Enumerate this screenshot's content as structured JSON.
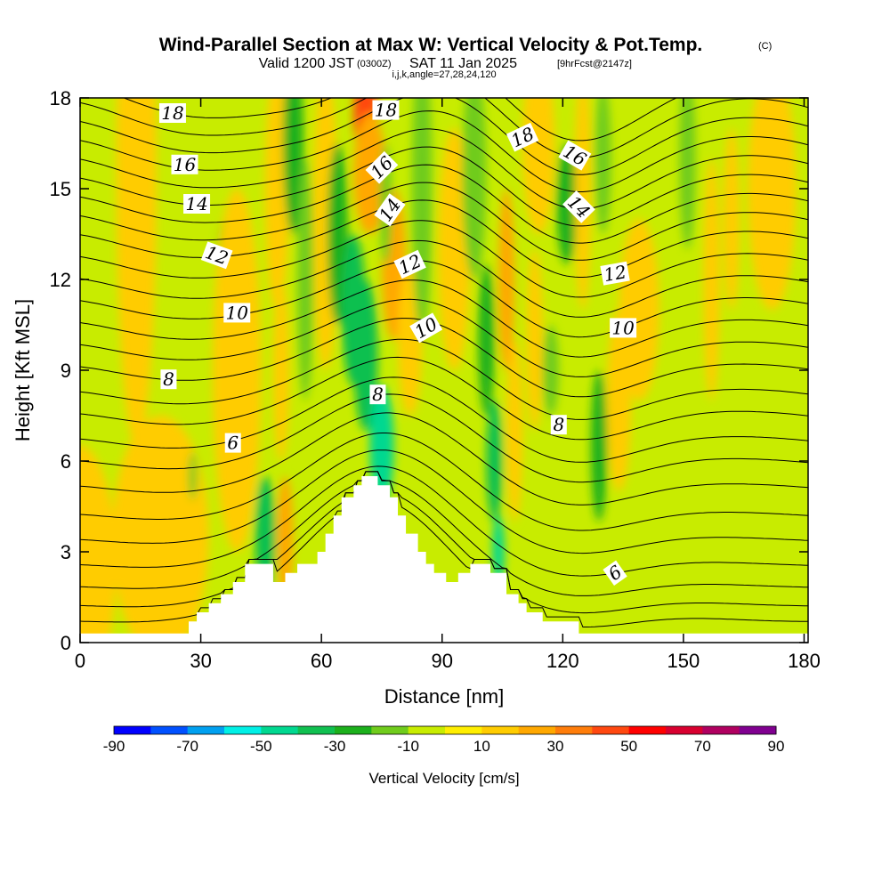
{
  "titles": {
    "main": "Wind-Parallel Section at Max W: Vertical Velocity & Pot.Temp.",
    "copyright": "(C)",
    "valid": "Valid 1200 JST",
    "valid_utc": "(0300Z)",
    "valid_date": "SAT 11 Jan 2025",
    "fcst": "[9hrFcst@2147z]",
    "indices": "i,j,k,angle=27,28,24,120"
  },
  "chart_data": {
    "type": "heatmap",
    "xlabel": "Distance [nm]",
    "ylabel": "Height [Kft MSL]",
    "xlim": [
      0,
      181
    ],
    "ylim": [
      0,
      18
    ],
    "x_ticks": [
      "0",
      "30",
      "60",
      "90",
      "120",
      "150",
      "180"
    ],
    "x_tick_values": [
      0,
      30,
      60,
      90,
      120,
      150,
      180
    ],
    "y_ticks": [
      "0",
      "3",
      "6",
      "9",
      "12",
      "15",
      "18"
    ],
    "y_tick_values": [
      0,
      3,
      6,
      9,
      12,
      15,
      18
    ],
    "background_value": -5,
    "colorbar": {
      "title": "Vertical Velocity [cm/s]",
      "labels": [
        "-90",
        "-70",
        "-50",
        "-30",
        "-10",
        "10",
        "30",
        "50",
        "70",
        "90"
      ],
      "bounds": [
        -90,
        -80,
        -70,
        -60,
        -50,
        -40,
        -30,
        -20,
        -10,
        0,
        10,
        20,
        30,
        40,
        50,
        60,
        70,
        80,
        90
      ],
      "colors": [
        "#0000ff",
        "#0050ff",
        "#00a0f0",
        "#00f0e6",
        "#00d890",
        "#10c050",
        "#1cb01c",
        "#70cc1c",
        "#c8ec00",
        "#ffee00",
        "#ffcc00",
        "#ffa800",
        "#ff7d0a",
        "#ff4810",
        "#ff0000",
        "#d80030",
        "#b00060",
        "#800090"
      ]
    },
    "w_features": [
      {
        "x": 14,
        "y": 15.5,
        "sx": 5,
        "sy": 9,
        "value": 12
      },
      {
        "x": 0,
        "y": 2.5,
        "sx": 9,
        "sy": 4,
        "value": 12
      },
      {
        "x": 20,
        "y": 3.5,
        "sx": 12,
        "sy": 4,
        "value": 12
      },
      {
        "x": 36,
        "y": 12.5,
        "sx": 2,
        "sy": 1.5,
        "value": -18
      },
      {
        "x": 28,
        "y": 5.5,
        "sx": 1,
        "sy": 0.8,
        "value": -18
      },
      {
        "x": 39,
        "y": 9,
        "sx": 6,
        "sy": 6,
        "value": 12
      },
      {
        "x": 46,
        "y": 3.5,
        "sx": 2.5,
        "sy": 2,
        "value": -32
      },
      {
        "x": 49,
        "y": 15,
        "sx": 3,
        "sy": 4,
        "value": 12
      },
      {
        "x": 50,
        "y": 9,
        "sx": 2,
        "sy": 3,
        "value": 18
      },
      {
        "x": 51,
        "y": 3.5,
        "sx": 2,
        "sy": 2,
        "value": 22
      },
      {
        "x": 53,
        "y": 16.5,
        "sx": 2.5,
        "sy": 3,
        "value": -25
      },
      {
        "x": 56,
        "y": 12,
        "sx": 2,
        "sy": 4,
        "value": -18
      },
      {
        "x": 61,
        "y": 14,
        "sx": 3,
        "sy": 5,
        "value": 12
      },
      {
        "x": 64,
        "y": 13.5,
        "sx": 2.5,
        "sy": 3,
        "value": -22
      },
      {
        "x": 68,
        "y": 11,
        "sx": 3,
        "sy": 2.5,
        "value": -38
      },
      {
        "x": 71,
        "y": 9.5,
        "sx": 3,
        "sy": 2.5,
        "value": -38
      },
      {
        "x": 75,
        "y": 6.5,
        "sx": 3,
        "sy": 2,
        "value": -45
      },
      {
        "x": 71,
        "y": 17.5,
        "sx": 3,
        "sy": 1.5,
        "value": 45
      },
      {
        "x": 72,
        "y": 15.5,
        "sx": 4,
        "sy": 2,
        "value": 28
      },
      {
        "x": 78,
        "y": 12.5,
        "sx": 3,
        "sy": 2.5,
        "value": 28
      },
      {
        "x": 82,
        "y": 10,
        "sx": 3,
        "sy": 2.5,
        "value": 18
      },
      {
        "x": 76,
        "y": 14.5,
        "sx": 1.5,
        "sy": 2,
        "value": -12
      },
      {
        "x": 85,
        "y": 15,
        "sx": 2.5,
        "sy": 5,
        "value": -12
      },
      {
        "x": 93,
        "y": 13,
        "sx": 4,
        "sy": 4,
        "value": 12
      },
      {
        "x": 98,
        "y": 15.5,
        "sx": 3,
        "sy": 3.5,
        "value": -18
      },
      {
        "x": 101,
        "y": 10,
        "sx": 2,
        "sy": 2.5,
        "value": -30
      },
      {
        "x": 103,
        "y": 6,
        "sx": 2,
        "sy": 2,
        "value": -35
      },
      {
        "x": 104,
        "y": 3,
        "sx": 1.5,
        "sy": 1.2,
        "value": -48
      },
      {
        "x": 106,
        "y": 12,
        "sx": 2,
        "sy": 3,
        "value": 20
      },
      {
        "x": 108,
        "y": 7,
        "sx": 2,
        "sy": 3,
        "value": 18
      },
      {
        "x": 113,
        "y": 10,
        "sx": 2,
        "sy": 3,
        "value": 15
      },
      {
        "x": 114,
        "y": 16.5,
        "sx": 4,
        "sy": 3,
        "value": 14
      },
      {
        "x": 117,
        "y": 9,
        "sx": 2,
        "sy": 1.5,
        "value": -18
      },
      {
        "x": 121,
        "y": 14.5,
        "sx": 2.5,
        "sy": 2,
        "value": -22
      },
      {
        "x": 125,
        "y": 15,
        "sx": 2,
        "sy": 4,
        "value": 12
      },
      {
        "x": 130,
        "y": 16,
        "sx": 2,
        "sy": 2.5,
        "value": -14
      },
      {
        "x": 129,
        "y": 6.5,
        "sx": 2,
        "sy": 2.5,
        "value": -30
      },
      {
        "x": 134,
        "y": 8,
        "sx": 3,
        "sy": 3,
        "value": 12
      },
      {
        "x": 139,
        "y": 11,
        "sx": 5,
        "sy": 3,
        "value": 12
      },
      {
        "x": 151,
        "y": 16,
        "sx": 2,
        "sy": 3,
        "value": -12
      },
      {
        "x": 157,
        "y": 12,
        "sx": 2,
        "sy": 4,
        "value": 12
      },
      {
        "x": 162,
        "y": 14,
        "sx": 2,
        "sy": 3,
        "value": 10
      },
      {
        "x": 172,
        "y": 15,
        "sx": 6,
        "sy": 4,
        "value": 10
      }
    ],
    "terrain": [
      [
        0,
        0.3
      ],
      [
        27,
        0.3
      ],
      [
        27,
        0.7
      ],
      [
        29,
        0.7
      ],
      [
        29,
        1.0
      ],
      [
        32,
        1.0
      ],
      [
        32,
        1.3
      ],
      [
        35,
        1.3
      ],
      [
        35,
        1.6
      ],
      [
        38,
        1.6
      ],
      [
        38,
        2.0
      ],
      [
        41,
        2.0
      ],
      [
        41,
        2.6
      ],
      [
        48,
        2.6
      ],
      [
        48,
        2.0
      ],
      [
        51,
        2.0
      ],
      [
        51,
        2.3
      ],
      [
        54,
        2.3
      ],
      [
        54,
        2.6
      ],
      [
        59,
        2.6
      ],
      [
        59,
        3.0
      ],
      [
        61,
        3.0
      ],
      [
        61,
        3.6
      ],
      [
        63,
        3.6
      ],
      [
        63,
        4.2
      ],
      [
        65,
        4.2
      ],
      [
        65,
        4.8
      ],
      [
        68,
        4.8
      ],
      [
        68,
        5.2
      ],
      [
        70,
        5.2
      ],
      [
        70,
        5.5
      ],
      [
        74,
        5.5
      ],
      [
        74,
        5.2
      ],
      [
        77,
        5.2
      ],
      [
        77,
        4.8
      ],
      [
        79,
        4.8
      ],
      [
        79,
        4.2
      ],
      [
        81,
        4.2
      ],
      [
        81,
        3.6
      ],
      [
        84,
        3.6
      ],
      [
        84,
        3.0
      ],
      [
        86,
        3.0
      ],
      [
        86,
        2.6
      ],
      [
        88,
        2.6
      ],
      [
        88,
        2.3
      ],
      [
        91,
        2.3
      ],
      [
        91,
        2.0
      ],
      [
        94,
        2.0
      ],
      [
        94,
        2.3
      ],
      [
        97,
        2.3
      ],
      [
        97,
        2.6
      ],
      [
        102,
        2.6
      ],
      [
        102,
        2.3
      ],
      [
        106,
        2.3
      ],
      [
        106,
        1.6
      ],
      [
        109,
        1.6
      ],
      [
        109,
        1.3
      ],
      [
        111,
        1.3
      ],
      [
        111,
        1.0
      ],
      [
        115,
        1.0
      ],
      [
        115,
        0.7
      ],
      [
        124,
        0.7
      ],
      [
        124,
        0.3
      ],
      [
        181,
        0.3
      ]
    ],
    "theta_contours": {
      "levels_kft_at_left": [
        0.7,
        1.2,
        1.8,
        2.5,
        3.3,
        4.1,
        5.0,
        5.8,
        6.5,
        7.3,
        8.0,
        8.8,
        9.5,
        10.2,
        10.9,
        11.6,
        12.3,
        13.0,
        13.6,
        14.2,
        14.8,
        15.4,
        16.0,
        16.6,
        17.2,
        17.8
      ],
      "labels": [
        {
          "text": "18",
          "x": 23,
          "y": 17.5,
          "angle": 0
        },
        {
          "text": "16",
          "x": 26,
          "y": 15.8,
          "angle": 0
        },
        {
          "text": "14",
          "x": 29,
          "y": 14.5,
          "angle": 0
        },
        {
          "text": "12",
          "x": 34,
          "y": 12.8,
          "angle": 20
        },
        {
          "text": "10",
          "x": 39,
          "y": 10.9,
          "angle": 0
        },
        {
          "text": "8",
          "x": 22,
          "y": 8.7,
          "angle": 0
        },
        {
          "text": "6",
          "x": 38,
          "y": 6.6,
          "angle": 0
        },
        {
          "text": "18",
          "x": 76,
          "y": 17.6,
          "angle": 0
        },
        {
          "text": "16",
          "x": 75,
          "y": 15.7,
          "angle": -45
        },
        {
          "text": "14",
          "x": 77,
          "y": 14.3,
          "angle": -55
        },
        {
          "text": "12",
          "x": 82,
          "y": 12.5,
          "angle": -25
        },
        {
          "text": "10",
          "x": 86,
          "y": 10.4,
          "angle": -30
        },
        {
          "text": "8",
          "x": 74,
          "y": 8.2,
          "angle": 0
        },
        {
          "text": "18",
          "x": 110,
          "y": 16.7,
          "angle": -25
        },
        {
          "text": "16",
          "x": 123,
          "y": 16.1,
          "angle": 30
        },
        {
          "text": "14",
          "x": 124,
          "y": 14.4,
          "angle": 45
        },
        {
          "text": "12",
          "x": 133,
          "y": 12.2,
          "angle": -10
        },
        {
          "text": "10",
          "x": 135,
          "y": 10.4,
          "angle": 0
        },
        {
          "text": "8",
          "x": 119,
          "y": 7.2,
          "angle": 0
        },
        {
          "text": "6",
          "x": 133,
          "y": 2.3,
          "angle": -35
        }
      ]
    }
  }
}
